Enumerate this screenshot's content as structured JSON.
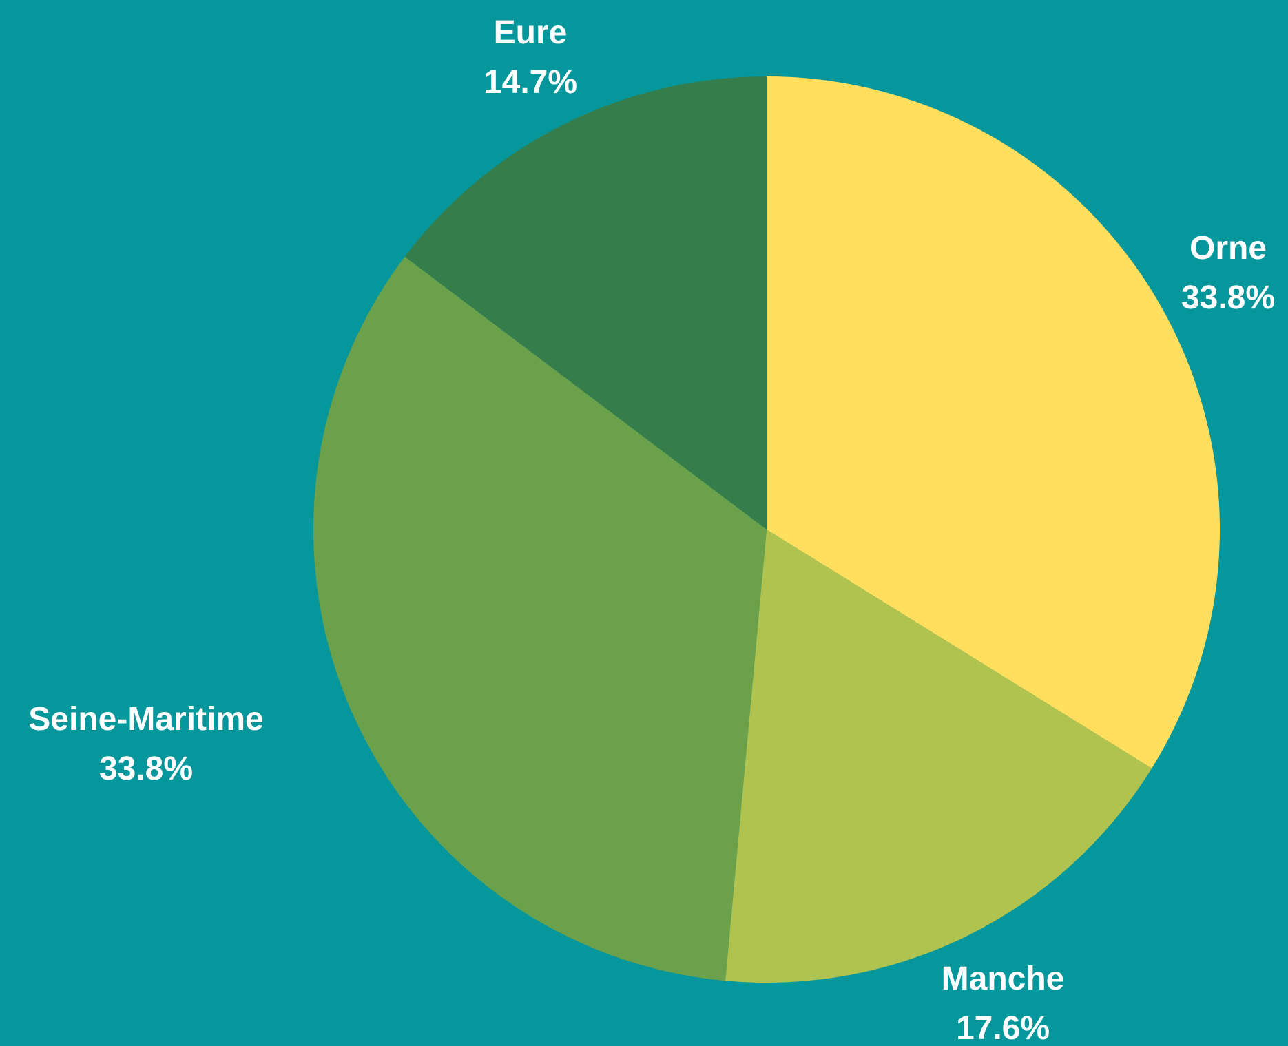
{
  "chart_data": {
    "type": "pie",
    "title": "",
    "start_angle_deg": 0,
    "direction": "clockwise",
    "background": "#05979b",
    "slices": [
      {
        "name": "Orne",
        "value": 33.8,
        "label": "33.8%",
        "color": "#ffdf5d"
      },
      {
        "name": "Manche",
        "value": 17.6,
        "label": "17.6%",
        "color": "#b0c34f"
      },
      {
        "name": "Seine-Maritime",
        "value": 33.8,
        "label": "33.8%",
        "color": "#6ca14b"
      },
      {
        "name": "Eure",
        "value": 14.7,
        "label": "14.7%",
        "color": "#357e4b"
      }
    ]
  }
}
